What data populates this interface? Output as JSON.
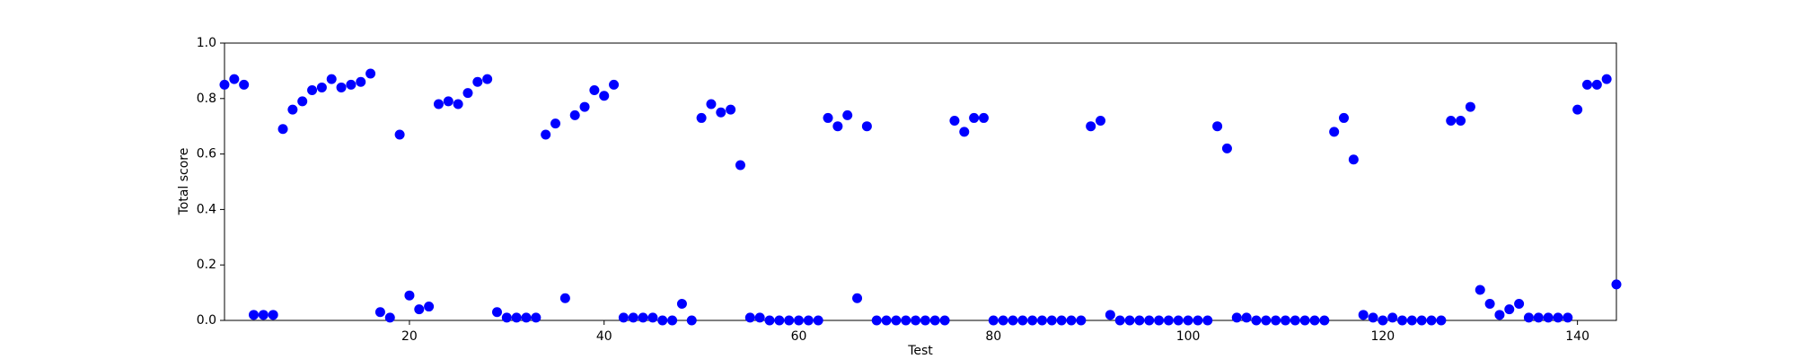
{
  "chart_data": {
    "type": "scatter",
    "x_label": "Test",
    "y_label": "Total score",
    "color": "#0000ff",
    "x": [
      1,
      2,
      3,
      4,
      5,
      6,
      7,
      8,
      9,
      10,
      11,
      12,
      13,
      14,
      15,
      16,
      17,
      18,
      19,
      20,
      21,
      22,
      23,
      24,
      25,
      26,
      27,
      28,
      29,
      30,
      31,
      32,
      33,
      34,
      35,
      36,
      37,
      38,
      39,
      40,
      41,
      42,
      43,
      44,
      45,
      46,
      47,
      48,
      49,
      50,
      51,
      52,
      53,
      54,
      55,
      56,
      57,
      58,
      59,
      60,
      61,
      62,
      63,
      64,
      65,
      66,
      67,
      68,
      69,
      70,
      71,
      72,
      73,
      74,
      75,
      76,
      77,
      78,
      79,
      80,
      81,
      82,
      83,
      84,
      85,
      86,
      87,
      88,
      89,
      90,
      91,
      92,
      93,
      94,
      95,
      96,
      97,
      98,
      99,
      100,
      101,
      102,
      103,
      104,
      105,
      106,
      107,
      108,
      109,
      110,
      111,
      112,
      113,
      114,
      115,
      116,
      117,
      118,
      119,
      120,
      121,
      122,
      123,
      124,
      125,
      126,
      127,
      128,
      129,
      130,
      131,
      132,
      133,
      134,
      135,
      136,
      137,
      138,
      139,
      140,
      141,
      142,
      143,
      144
    ],
    "values": [
      0.85,
      0.87,
      0.85,
      0.02,
      0.02,
      0.02,
      0.69,
      0.76,
      0.79,
      0.83,
      0.84,
      0.87,
      0.84,
      0.85,
      0.86,
      0.89,
      0.03,
      0.01,
      0.67,
      0.09,
      0.04,
      0.05,
      0.78,
      0.79,
      0.78,
      0.82,
      0.86,
      0.87,
      0.03,
      0.01,
      0.01,
      0.01,
      0.01,
      0.67,
      0.71,
      0.08,
      0.74,
      0.77,
      0.83,
      0.81,
      0.85,
      0.01,
      0.01,
      0.01,
      0.01,
      0,
      0,
      0.06,
      0,
      0.73,
      0.78,
      0.75,
      0.76,
      0.56,
      0.01,
      0.01,
      0,
      0,
      0,
      0,
      0,
      0,
      0.73,
      0.7,
      0.74,
      0.08,
      0.7,
      0,
      0,
      0,
      0,
      0,
      0,
      0,
      0,
      0.72,
      0.68,
      0.73,
      0.73,
      0,
      0,
      0,
      0,
      0,
      0,
      0,
      0,
      0,
      0,
      0.7,
      0.72,
      0.02,
      0,
      0,
      0,
      0,
      0,
      0,
      0,
      0,
      0,
      0,
      0.7,
      0.62,
      0.01,
      0.01,
      0,
      0,
      0,
      0,
      0,
      0,
      0,
      0,
      0.68,
      0.73,
      0.58,
      0.02,
      0.01,
      0,
      0.01,
      0,
      0,
      0,
      0,
      0,
      0.72,
      0.72,
      0.77,
      0.11,
      0.06,
      0.02,
      0.04,
      0.06,
      0.01,
      0.01,
      0.01,
      0.01,
      0.01,
      0.76,
      0.85,
      0.85,
      0.87,
      0.13
    ],
    "xlim": [
      1,
      144
    ],
    "xticks": [
      20,
      40,
      60,
      80,
      100,
      120,
      140
    ],
    "ylim": [
      0,
      1
    ],
    "yticks": [
      {
        "value": 0,
        "label": "0.0"
      },
      {
        "value": 0.2,
        "label": "0.2"
      },
      {
        "value": 0.4,
        "label": "0.4"
      },
      {
        "value": 0.6,
        "label": "0.6"
      },
      {
        "value": 0.8,
        "label": "0.8"
      },
      {
        "value": 1,
        "label": "1.0"
      }
    ]
  }
}
